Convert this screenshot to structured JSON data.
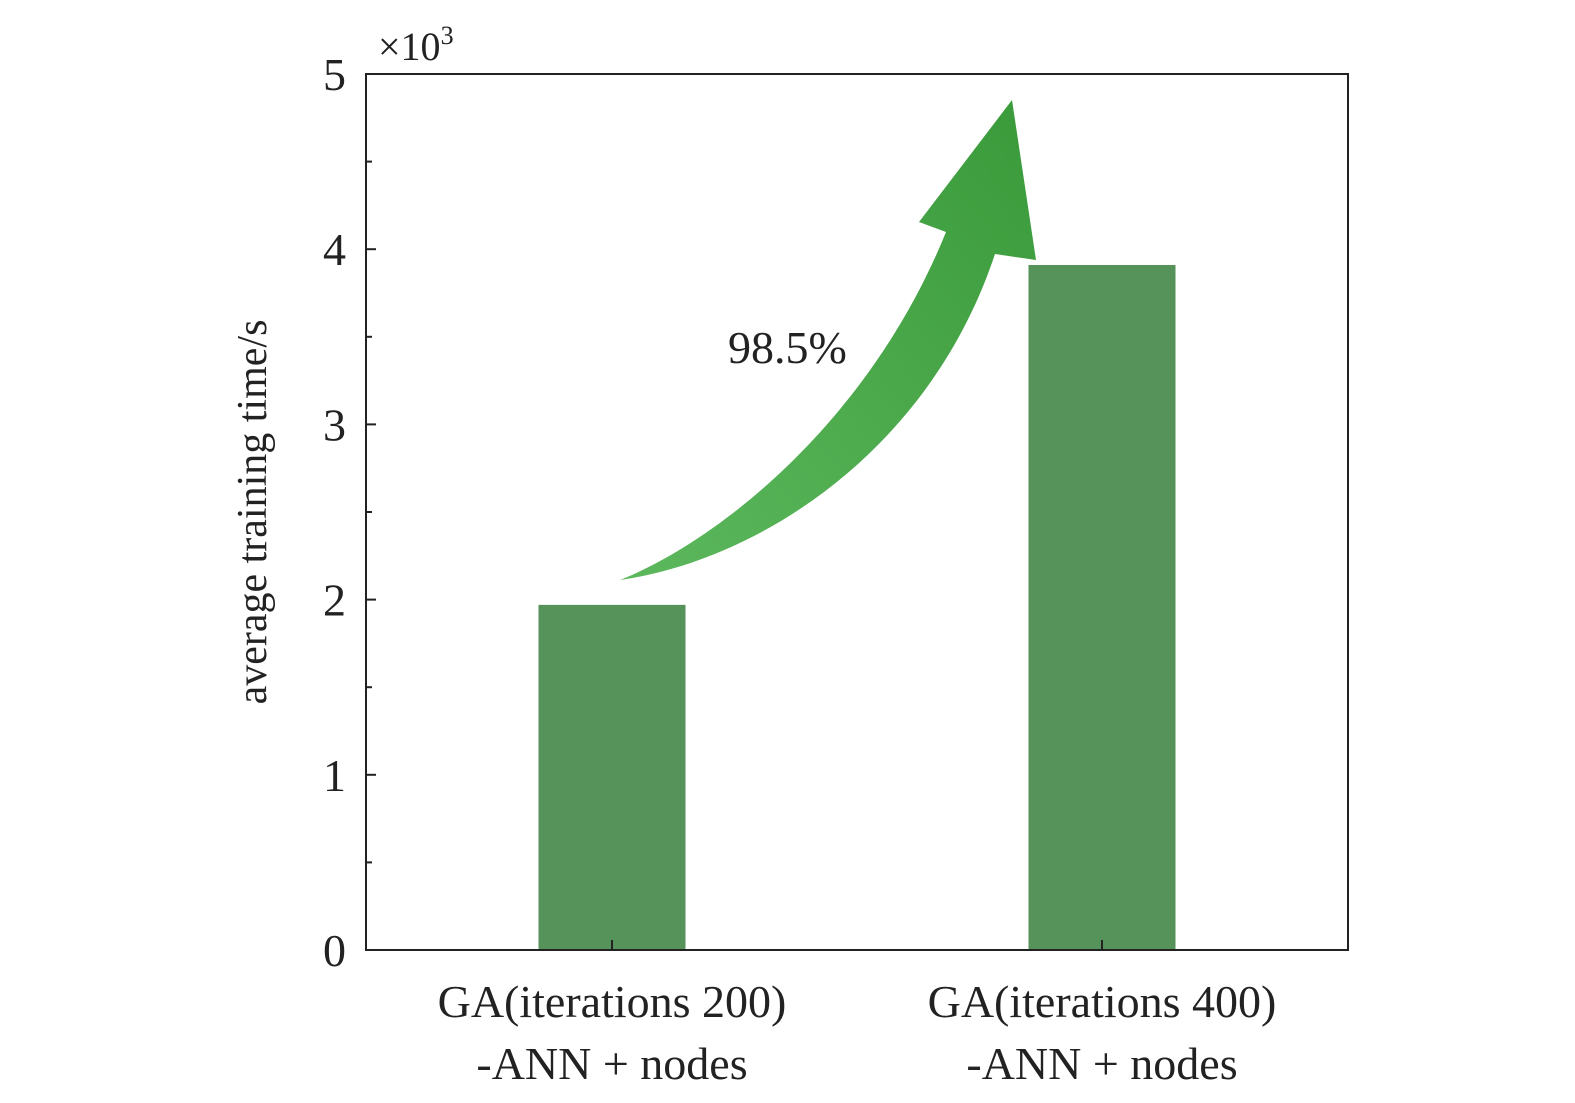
{
  "chart_data": {
    "type": "bar",
    "categories": [
      [
        "GA(iterations 200)",
        "-ANN + nodes"
      ],
      [
        "GA(iterations 400)",
        "-ANN + nodes"
      ]
    ],
    "values": [
      1.97,
      3.91
    ],
    "ylabel": "average training time/s",
    "y_multiplier": "×10",
    "y_multiplier_exp": "3",
    "ylim": [
      0,
      5
    ],
    "yticks": [
      "0",
      "1",
      "2",
      "3",
      "4",
      "5"
    ],
    "annotation": "98.5%",
    "grid": false,
    "colors": {
      "bar": "#56935A",
      "arrow": "#3E9E3E",
      "axis": "#222222"
    }
  }
}
